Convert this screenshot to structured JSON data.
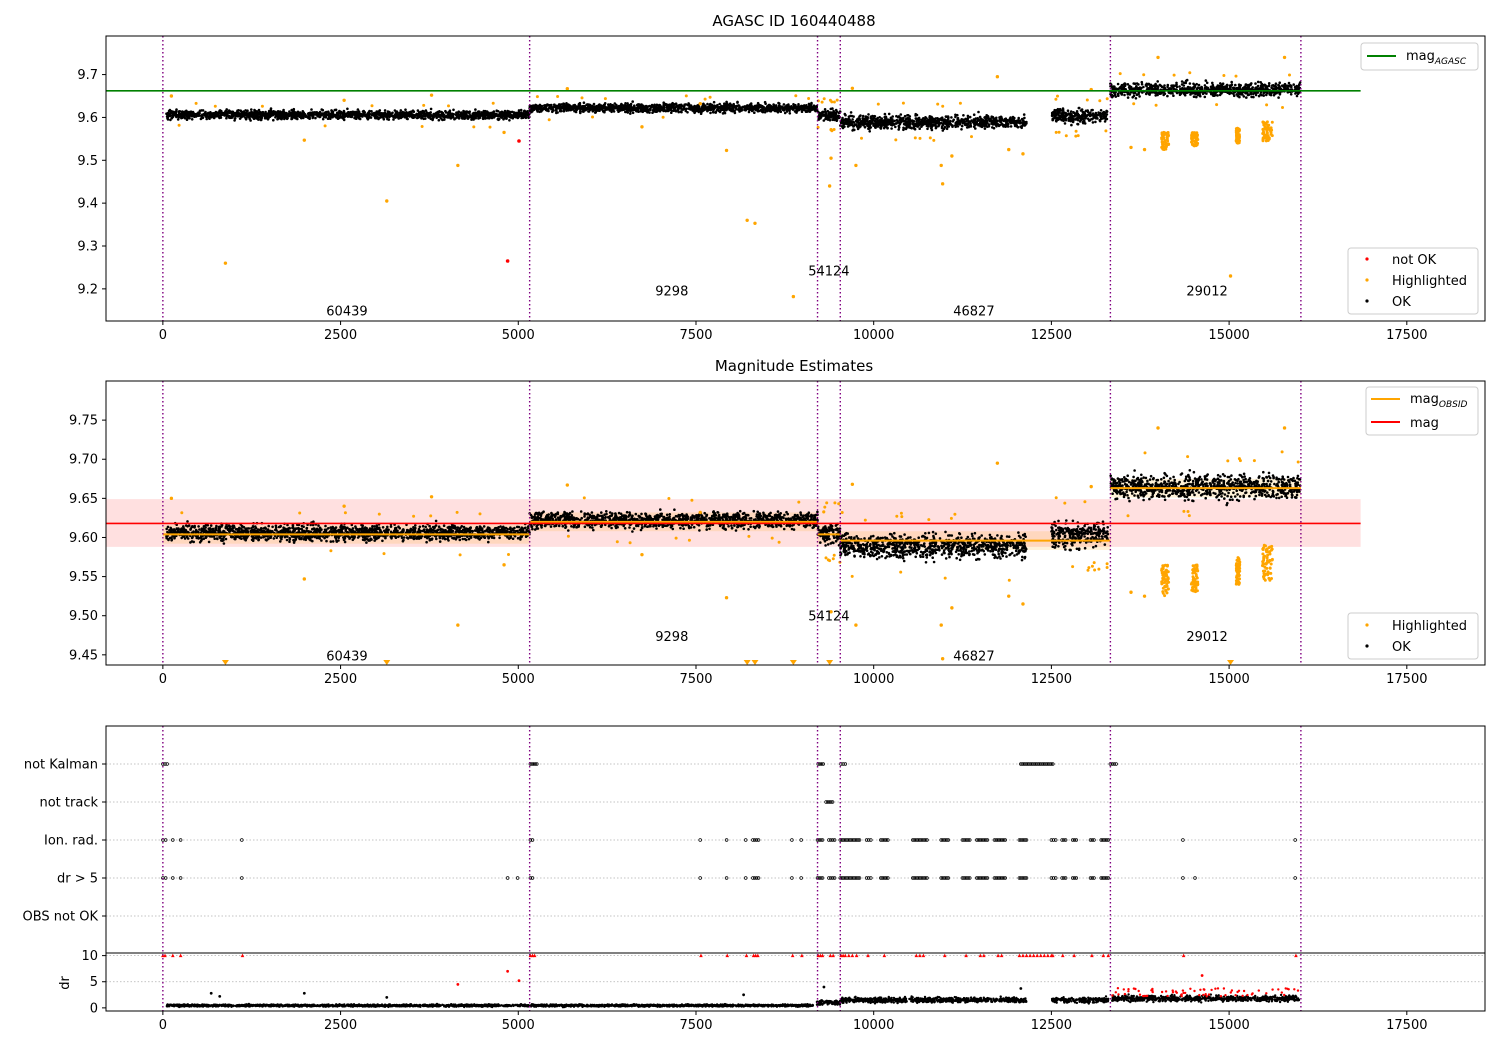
{
  "chart_data": [
    {
      "type": "scatter",
      "title": "AGASC ID 160440488",
      "x_ticks": [
        "0",
        "2500",
        "5000",
        "7500",
        "10000",
        "12500",
        "15000",
        "17500"
      ],
      "y_ticks": [
        "9.2",
        "9.3",
        "9.4",
        "9.5",
        "9.6",
        "9.7"
      ],
      "xlim": [
        -800,
        18600
      ],
      "ylim": [
        9.125,
        9.79
      ],
      "lines": [
        {
          "name": "mag$_{AGASC}$",
          "label_main": "mag",
          "label_sub": "AGASC",
          "y": 9.662,
          "x": [
            -800,
            16850
          ],
          "color": "#008000"
        }
      ],
      "obsid_boundaries": [
        0,
        5160,
        9210,
        9530,
        13330,
        16010
      ],
      "obsid_labels": [
        {
          "text": "60439",
          "x": 2590,
          "y": 9.15
        },
        {
          "text": "9298",
          "x": 7160,
          "y": 9.196
        },
        {
          "text": "54124",
          "x": 9370,
          "y": 9.243
        },
        {
          "text": "46827",
          "x": 11410,
          "y": 9.15
        },
        {
          "text": "29012",
          "x": 14690,
          "y": 9.196
        }
      ],
      "segments": [
        {
          "x": [
            50,
            5160
          ],
          "level": 9.606,
          "spread": 0.018
        },
        {
          "x": [
            5160,
            9210
          ],
          "level": 9.622,
          "spread": 0.018
        },
        {
          "x": [
            9210,
            9530
          ],
          "level": 9.605,
          "spread": 0.025
        },
        {
          "x": [
            9530,
            12150
          ],
          "level": 9.589,
          "spread": 0.028
        },
        {
          "x": [
            12500,
            13300
          ],
          "level": 9.603,
          "spread": 0.03
        },
        {
          "x": [
            13330,
            16000
          ],
          "level": 9.665,
          "spread": 0.028
        }
      ],
      "highlighted": [
        [
          880,
          9.26
        ],
        [
          3150,
          9.405
        ],
        [
          4150,
          9.488
        ],
        [
          7930,
          9.523
        ],
        [
          8220,
          9.36
        ],
        [
          8330,
          9.353
        ],
        [
          8870,
          9.182
        ],
        [
          9380,
          9.44
        ],
        [
          9400,
          9.505
        ],
        [
          9750,
          9.488
        ],
        [
          10950,
          9.488
        ],
        [
          10970,
          9.445
        ],
        [
          11100,
          9.51
        ],
        [
          11900,
          9.525
        ],
        [
          12100,
          9.515
        ],
        [
          15020,
          9.23
        ],
        [
          1990,
          9.547
        ],
        [
          4800,
          9.565
        ],
        [
          6740,
          9.578
        ],
        [
          13620,
          9.53
        ],
        [
          13810,
          9.525
        ],
        [
          9700,
          9.668
        ],
        [
          11740,
          9.695
        ],
        [
          13060,
          9.665
        ],
        [
          14000,
          9.74
        ],
        [
          15780,
          9.74
        ],
        [
          120,
          9.65
        ],
        [
          2550,
          9.64
        ],
        [
          3780,
          9.652
        ],
        [
          5690,
          9.667
        ],
        [
          7560,
          9.632
        ]
      ],
      "highlighted_clusters": [
        {
          "x": [
            14050,
            14150
          ],
          "y": [
            9.525,
            9.565
          ]
        },
        {
          "x": [
            14470,
            14560
          ],
          "y": [
            9.53,
            9.565
          ]
        },
        {
          "x": [
            15100,
            15150
          ],
          "y": [
            9.54,
            9.575
          ]
        },
        {
          "x": [
            15470,
            15610
          ],
          "y": [
            9.545,
            9.59
          ]
        }
      ],
      "not_ok": [
        [
          4850,
          9.265
        ],
        [
          5010,
          9.545
        ]
      ],
      "legend": {
        "position": "lower right",
        "entries": [
          {
            "label": "not OK",
            "color": "#ff0000"
          },
          {
            "label": "Highlighted",
            "color": "#ffa500"
          },
          {
            "label": "OK",
            "color": "#000000"
          }
        ]
      }
    },
    {
      "type": "scatter",
      "title": "Magnitude Estimates",
      "x_ticks": [
        "0",
        "2500",
        "5000",
        "7500",
        "10000",
        "12500",
        "15000",
        "17500"
      ],
      "y_ticks": [
        "9.45",
        "9.50",
        "9.55",
        "9.60",
        "9.65",
        "9.70",
        "9.75"
      ],
      "xlim": [
        -800,
        18600
      ],
      "ylim": [
        9.437,
        9.8
      ],
      "mag_line": {
        "name": "mag",
        "y": 9.618,
        "band": [
          9.588,
          9.649
        ],
        "x": [
          -800,
          16850
        ],
        "color": "#ff0000"
      },
      "mag_obsid_label_main": "mag",
      "mag_obsid_label_sub": "OBSID",
      "mag_obsid": [
        {
          "x": [
            0,
            5160
          ],
          "y": 9.604
        },
        {
          "x": [
            5160,
            9210
          ],
          "y": 9.62
        },
        {
          "x": [
            9210,
            9530
          ],
          "y": 9.604
        },
        {
          "x": [
            9530,
            13330
          ],
          "y": 9.596
        },
        {
          "x": [
            13330,
            16010
          ],
          "y": 9.663
        }
      ],
      "obsid_boundaries": [
        0,
        5160,
        9210,
        9530,
        13330,
        16010
      ],
      "obsid_labels": [
        {
          "text": "60439",
          "x": 2590,
          "y": 9.449
        },
        {
          "text": "9298",
          "x": 7160,
          "y": 9.474
        },
        {
          "text": "54124",
          "x": 9370,
          "y": 9.5
        },
        {
          "text": "46827",
          "x": 11410,
          "y": 9.449
        },
        {
          "text": "29012",
          "x": 14690,
          "y": 9.474
        }
      ],
      "segments": [
        {
          "x": [
            50,
            5160
          ],
          "level": 9.606,
          "spread": 0.018
        },
        {
          "x": [
            5160,
            9210
          ],
          "level": 9.622,
          "spread": 0.018
        },
        {
          "x": [
            9210,
            9530
          ],
          "level": 9.605,
          "spread": 0.025
        },
        {
          "x": [
            9530,
            12150
          ],
          "level": 9.589,
          "spread": 0.028
        },
        {
          "x": [
            12500,
            13300
          ],
          "level": 9.603,
          "spread": 0.03
        },
        {
          "x": [
            13330,
            16000
          ],
          "level": 9.665,
          "spread": 0.028
        }
      ],
      "highlighted": [
        [
          4150,
          9.488
        ],
        [
          7930,
          9.523
        ],
        [
          9400,
          9.505
        ],
        [
          9750,
          9.488
        ],
        [
          10950,
          9.488
        ],
        [
          10970,
          9.445
        ],
        [
          11100,
          9.51
        ],
        [
          11900,
          9.525
        ],
        [
          12100,
          9.515
        ],
        [
          1990,
          9.547
        ],
        [
          4800,
          9.565
        ],
        [
          6740,
          9.578
        ],
        [
          13620,
          9.53
        ],
        [
          13810,
          9.525
        ],
        [
          9700,
          9.668
        ],
        [
          11740,
          9.695
        ],
        [
          13060,
          9.665
        ],
        [
          14000,
          9.74
        ],
        [
          15780,
          9.74
        ],
        [
          120,
          9.65
        ],
        [
          2550,
          9.64
        ],
        [
          3780,
          9.652
        ],
        [
          5690,
          9.667
        ],
        [
          7560,
          9.632
        ]
      ],
      "highlighted_clusters": [
        {
          "x": [
            14050,
            14150
          ],
          "y": [
            9.525,
            9.565
          ]
        },
        {
          "x": [
            14470,
            14560
          ],
          "y": [
            9.53,
            9.565
          ]
        },
        {
          "x": [
            15100,
            15150
          ],
          "y": [
            9.54,
            9.575
          ]
        },
        {
          "x": [
            15470,
            15610
          ],
          "y": [
            9.545,
            9.59
          ]
        }
      ],
      "below_range_markers": [
        880,
        3150,
        8220,
        8330,
        8870,
        9380,
        15020
      ],
      "legend_top": {
        "position": "upper right",
        "entries": [
          {
            "label": "mag$_{OBSID}$",
            "color": "#ffa500"
          },
          {
            "label": "mag",
            "color": "#ff0000"
          }
        ]
      },
      "legend_bottom": {
        "position": "lower right",
        "entries": [
          {
            "label": "Highlighted",
            "color": "#ffa500"
          },
          {
            "label": "OK",
            "color": "#000000"
          }
        ]
      }
    },
    {
      "type": "scatter",
      "title": "",
      "x_ticks": [
        "0",
        "2500",
        "5000",
        "7500",
        "10000",
        "12500",
        "15000",
        "17500"
      ],
      "xlim": [
        -800,
        18600
      ],
      "flag_rows": [
        "not Kalman",
        "not track",
        "Ion. rad.",
        "dr > 5",
        "OBS not OK"
      ],
      "flags": {
        "not Kalman": [
          [
            0,
            60
          ],
          [
            5170,
            5260
          ],
          [
            9220,
            9290
          ],
          [
            9540,
            9600
          ],
          [
            12070,
            12520
          ],
          [
            13330,
            13410
          ]
        ],
        "not track": [
          [
            9330,
            9420
          ]
        ],
        "Ion. rad.": [
          [
            0,
            40
          ],
          [
            140,
            160
          ],
          [
            250,
            270
          ],
          [
            1110,
            1130
          ],
          [
            5170,
            5200
          ],
          [
            7560,
            7580
          ],
          [
            7930,
            7950
          ],
          [
            8200,
            8220
          ],
          [
            8300,
            8380
          ],
          [
            8850,
            8870
          ],
          [
            8980,
            9000
          ],
          [
            9210,
            9280
          ],
          [
            9370,
            9450
          ],
          [
            9530,
            9800
          ],
          [
            9900,
            9960
          ],
          [
            10100,
            10200
          ],
          [
            10550,
            10750
          ],
          [
            10950,
            11050
          ],
          [
            11250,
            11350
          ],
          [
            11450,
            11600
          ],
          [
            11700,
            11850
          ],
          [
            12050,
            12150
          ],
          [
            12500,
            12560
          ],
          [
            12650,
            12700
          ],
          [
            12800,
            12850
          ],
          [
            13050,
            13100
          ],
          [
            13200,
            13300
          ],
          [
            14350,
            14370
          ],
          [
            15930,
            15950
          ]
        ],
        "dr > 5": [
          [
            0,
            40
          ],
          [
            140,
            160
          ],
          [
            250,
            270
          ],
          [
            1110,
            1130
          ],
          [
            4850,
            4870
          ],
          [
            4990,
            5010
          ],
          [
            5170,
            5200
          ],
          [
            7560,
            7580
          ],
          [
            7930,
            7950
          ],
          [
            8200,
            8220
          ],
          [
            8300,
            8380
          ],
          [
            8850,
            8870
          ],
          [
            8980,
            9000
          ],
          [
            9210,
            9280
          ],
          [
            9370,
            9450
          ],
          [
            9530,
            9800
          ],
          [
            9900,
            9960
          ],
          [
            10100,
            10200
          ],
          [
            10550,
            10750
          ],
          [
            10950,
            11050
          ],
          [
            11250,
            11350
          ],
          [
            11450,
            11600
          ],
          [
            11700,
            11850
          ],
          [
            12050,
            12150
          ],
          [
            12500,
            12560
          ],
          [
            12650,
            12700
          ],
          [
            12800,
            12850
          ],
          [
            13050,
            13100
          ],
          [
            13200,
            13300
          ],
          [
            14350,
            14370
          ],
          [
            14520,
            14540
          ],
          [
            15930,
            15950
          ]
        ],
        "OBS not OK": []
      },
      "dr": {
        "ylabel": "dr",
        "y_ticks": [
          "0",
          "5",
          "10"
        ],
        "ylim": [
          -0.6,
          10.5
        ],
        "clip_value": 10,
        "base_segments": [
          {
            "x": [
              50,
              9150
            ],
            "level": 0.45,
            "spread": 0.35
          },
          {
            "x": [
              9200,
              9530
            ],
            "level": 1.0,
            "spread": 0.7
          },
          {
            "x": [
              9530,
              12150
            ],
            "level": 1.5,
            "spread": 0.8
          },
          {
            "x": [
              12500,
              13300
            ],
            "level": 1.5,
            "spread": 0.8
          },
          {
            "x": [
              13330,
              16000
            ],
            "level": 1.8,
            "spread": 0.9
          }
        ],
        "outliers": [
          [
            680,
            2.8
          ],
          [
            800,
            2.2
          ],
          [
            1990,
            2.8
          ],
          [
            3150,
            2.0
          ],
          [
            4150,
            4.5
          ],
          [
            4850,
            7.0
          ],
          [
            5010,
            5.2
          ],
          [
            8170,
            2.5
          ],
          [
            9300,
            4.0
          ],
          [
            12070,
            3.7
          ],
          [
            14620,
            6.2
          ]
        ],
        "clipped_x": [
          0,
          30,
          140,
          250,
          1120,
          5170,
          5200,
          5230,
          7570,
          7940,
          8210,
          8310,
          8340,
          8370,
          8860,
          8990,
          9220,
          9250,
          9280,
          9390,
          9430,
          9540,
          9570,
          9600,
          9650,
          9700,
          9760,
          9920,
          10150,
          10600,
          10650,
          10700,
          11000,
          11300,
          11500,
          11550,
          11750,
          11800,
          12050,
          12100,
          12150,
          12200,
          12250,
          12300,
          12350,
          12400,
          12450,
          12500,
          12520,
          12660,
          12820,
          13070,
          13230,
          13300,
          14360,
          15940
        ]
      }
    }
  ]
}
